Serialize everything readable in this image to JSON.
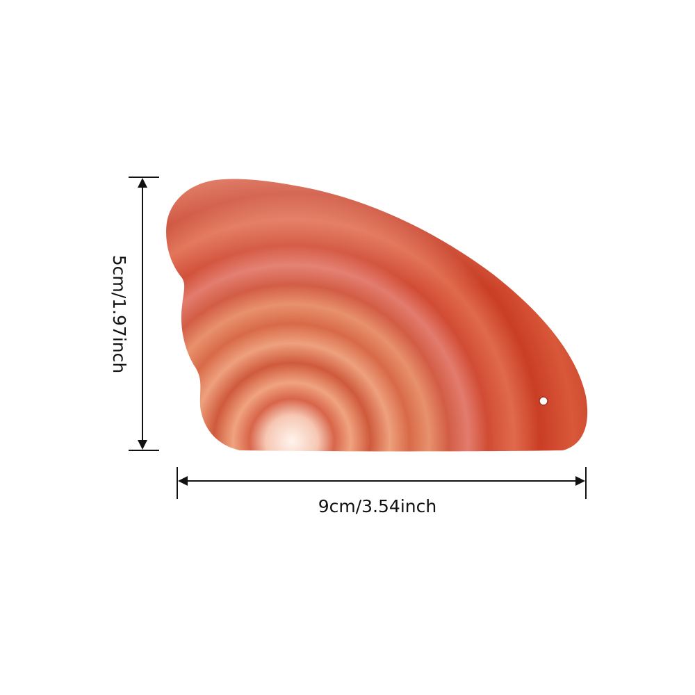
{
  "height_label": "5cm/1.97inch",
  "width_label": "9cm/3.54inch"
}
